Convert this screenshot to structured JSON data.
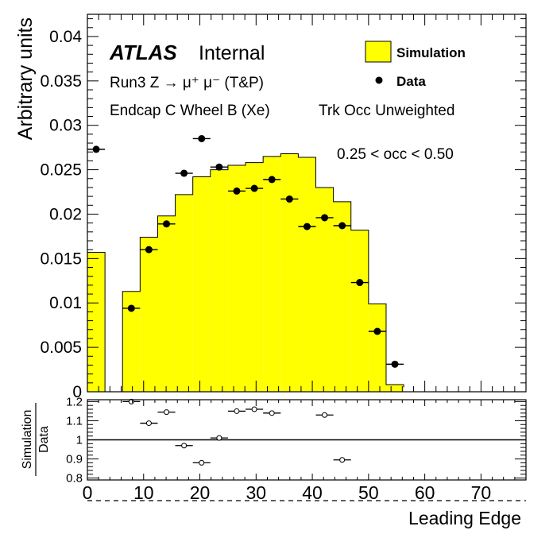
{
  "chart_data": [
    {
      "type": "bar",
      "panel": "main",
      "ylabel": "Arbitrary units",
      "ylim": [
        0,
        0.0425
      ],
      "xlim": [
        0,
        78
      ],
      "y_ticks": [
        "0",
        "0.005",
        "0.01",
        "0.015",
        "0.02",
        "0.025",
        "0.03",
        "0.035",
        "0.04"
      ],
      "y_tick_values": [
        0,
        0.005,
        0.01,
        0.015,
        0.02,
        0.025,
        0.03,
        0.035,
        0.04
      ],
      "annotations": {
        "experiment": "ATLAS",
        "status": "Internal",
        "line1": "Run3 Z → μ⁺ μ⁻ (T&P)",
        "line2_left": "Endcap C Wheel B (Xe)",
        "line2_right": "Trk Occ Unweighted",
        "cut": "0.25 < occ < 0.50"
      },
      "legend": {
        "placement": "top-right",
        "simulation": "Simulation",
        "data": "Data"
      },
      "simulation_bins": {
        "edges": [
          0,
          3.125,
          6.25,
          9.375,
          12.5,
          15.625,
          18.75,
          21.875,
          25,
          28.125,
          31.25,
          34.375,
          37.5,
          40.625,
          43.75,
          46.875,
          50,
          53.125,
          56.25
        ],
        "values": [
          0.0157,
          0,
          0.0113,
          0.0174,
          0.0198,
          0.0222,
          0.0242,
          0.025,
          0.0255,
          0.0258,
          0.0265,
          0.0268,
          0.0264,
          0.023,
          0.0214,
          0.0182,
          0.0099,
          0.0008,
          0.0005
        ]
      },
      "data_points": {
        "x": [
          1.5625,
          7.8125,
          10.9375,
          14.0625,
          17.1875,
          20.3125,
          23.4375,
          26.5625,
          29.6875,
          32.8125,
          35.9375,
          39.0625,
          42.1875,
          45.3125,
          48.4375,
          51.5625,
          54.6875
        ],
        "y": [
          0.0273,
          0.0094,
          0.016,
          0.0189,
          0.0246,
          0.0285,
          0.0253,
          0.0226,
          0.0229,
          0.0239,
          0.0217,
          0.0186,
          0.0196,
          0.0187,
          0.0123,
          0.0068,
          0.0031
        ],
        "xerr": 1.5625
      }
    },
    {
      "type": "scatter",
      "panel": "ratio",
      "ylabel_num": "Simulation",
      "ylabel_den": "Data",
      "xlabel": "Leading Edge",
      "xlim": [
        0,
        78
      ],
      "ylim": [
        0.79,
        1.21
      ],
      "reference_line": 1,
      "x_ticks": [
        "0",
        "10",
        "20",
        "30",
        "40",
        "50",
        "60",
        "70"
      ],
      "x_tick_values": [
        0,
        10,
        20,
        30,
        40,
        50,
        60,
        70
      ],
      "y_ticks": [
        "0.8",
        "0.9",
        "1",
        "1.1",
        "1.2"
      ],
      "y_tick_values": [
        0.8,
        0.9,
        1,
        1.1,
        1.2
      ],
      "points": {
        "x": [
          7.8125,
          10.9375,
          14.0625,
          17.1875,
          20.3125,
          23.4375,
          26.5625,
          29.6875,
          32.8125,
          42.1875,
          45.3125
        ],
        "y": [
          1.2,
          1.087,
          1.145,
          0.97,
          0.88,
          1.01,
          1.15,
          1.16,
          1.14,
          1.13,
          0.895
        ],
        "xerr": 1.5625
      }
    }
  ]
}
